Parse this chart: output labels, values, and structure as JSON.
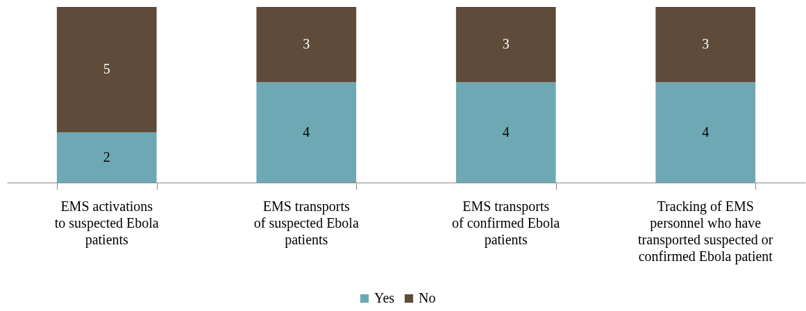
{
  "chart_data": {
    "type": "bar",
    "stacked": true,
    "data_labels": true,
    "legend": "bottom",
    "grid": false,
    "categories": [
      "EMS activations\nto suspected Ebola\npatients",
      "EMS transports\nof suspected Ebola\npatients",
      "EMS transports\nof confirmed Ebola\npatients",
      "Tracking of EMS\npersonnel who have\ntransported suspected or\nconfirmed Ebola patient"
    ],
    "series": [
      {
        "name": "Yes",
        "color": "#6fa8b5",
        "values": [
          2,
          4,
          4,
          4
        ]
      },
      {
        "name": "No",
        "color": "#5e4b3a",
        "values": [
          5,
          3,
          3,
          3
        ]
      }
    ]
  }
}
